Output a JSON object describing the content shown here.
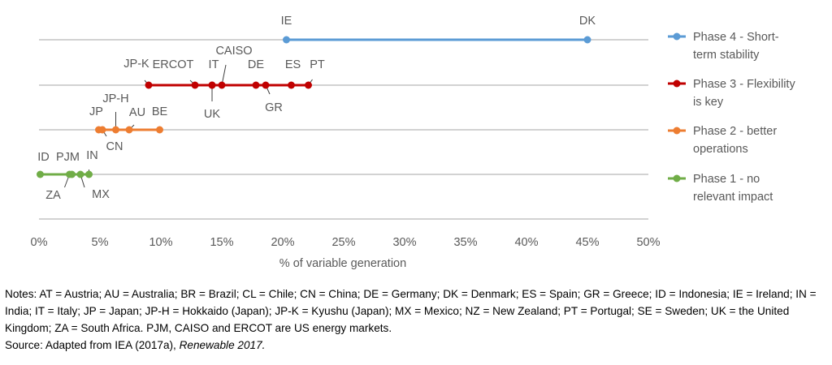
{
  "chart_data": {
    "type": "scatter",
    "title": "",
    "xlabel": "% of variable generation",
    "xlim": [
      0,
      50
    ],
    "x_ticks": [
      0,
      5,
      10,
      15,
      20,
      25,
      30,
      35,
      40,
      45,
      50
    ],
    "x_tick_format": "percent",
    "grid": "horizontal",
    "legend_position": "right",
    "series": [
      {
        "name": "Phase 4 - Short-term stability",
        "legend_lines": [
          "Phase 4 - Short-",
          "term stability"
        ],
        "color": "#5B9BD5",
        "points": [
          {
            "label": "IE",
            "x": 20.3
          },
          {
            "label": "DK",
            "x": 45.0
          }
        ]
      },
      {
        "name": "Phase 3 - Flexibility is key",
        "legend_lines": [
          "Phase 3 - Flexibility",
          "is key"
        ],
        "color": "#C00000",
        "points": [
          {
            "label": "JP-K",
            "x": 9.0
          },
          {
            "label": "ERCOT",
            "x": 12.8
          },
          {
            "label": "IT",
            "x": 14.2
          },
          {
            "label": "CAISO",
            "x": 15.0
          },
          {
            "label": "UK",
            "x": 14.2
          },
          {
            "label": "DE",
            "x": 17.8
          },
          {
            "label": "GR",
            "x": 18.6
          },
          {
            "label": "ES",
            "x": 20.7
          },
          {
            "label": "PT",
            "x": 22.1
          }
        ]
      },
      {
        "name": "Phase 2 - better operations",
        "legend_lines": [
          "Phase 2 - better",
          "operations"
        ],
        "color": "#ED7D31",
        "points": [
          {
            "label": "JP",
            "x": 4.9
          },
          {
            "label": "CN",
            "x": 5.2
          },
          {
            "label": "JP-H",
            "x": 6.3
          },
          {
            "label": "AU",
            "x": 7.4
          },
          {
            "label": "BE",
            "x": 9.9
          }
        ]
      },
      {
        "name": "Phase 1 - no relevant impact",
        "legend_lines": [
          "Phase 1 - no",
          "relevant impact"
        ],
        "color": "#70AD47",
        "points": [
          {
            "label": "ID",
            "x": 0.1
          },
          {
            "label": "ZA",
            "x": 2.5
          },
          {
            "label": "PJM",
            "x": 2.7
          },
          {
            "label": "MX",
            "x": 3.4
          },
          {
            "label": "IN",
            "x": 4.1
          }
        ]
      }
    ]
  },
  "notes": {
    "notes_text": "Notes: AT = Austria; AU = Australia; BR = Brazil; CL = Chile; CN = China; DE = Germany; DK = Denmark; ES = Spain; GR = Greece; ID = Indonesia; IE = Ireland; IN = India; IT = Italy; JP = Japan; JP-H = Hokkaido (Japan); JP-K = Kyushu (Japan); MX = Mexico; NZ = New Zealand; PT = Portugal; SE = Sweden; UK = the United Kingdom; ZA = South Africa. PJM, CAISO and ERCOT are US energy markets.",
    "source_prefix": "Source: Adapted from IEA (2017a), ",
    "source_title": "Renewable 2017."
  }
}
